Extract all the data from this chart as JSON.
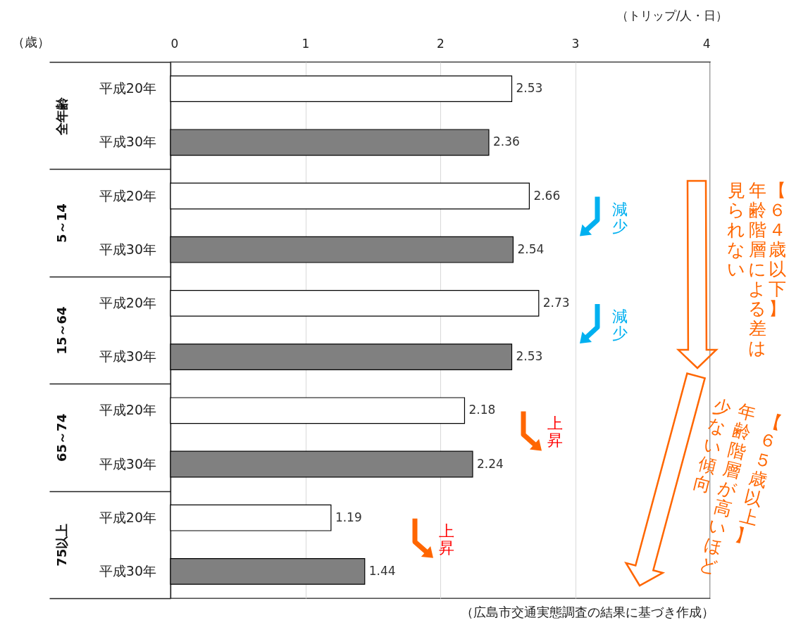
{
  "chart_data": {
    "type": "bar",
    "orientation": "horizontal",
    "xlabel": "（トリップ/人・日）",
    "ylabel": "（歳）",
    "categories": [
      "全年齢",
      "5～14",
      "15～64",
      "65～74",
      "75以上"
    ],
    "series": [
      {
        "name": "平成20年",
        "color": "#ffffff",
        "values": [
          2.53,
          2.66,
          2.73,
          2.18,
          1.19
        ]
      },
      {
        "name": "平成30年",
        "color": "#808080",
        "values": [
          2.36,
          2.54,
          2.53,
          2.24,
          1.44
        ]
      }
    ],
    "xlim": [
      0,
      4
    ],
    "xticks": [
      0,
      1,
      2,
      3,
      4
    ],
    "grid": "x",
    "data_labels": true,
    "annotations": [
      "減少",
      "減少",
      "上昇",
      "上昇",
      "【６４歳以下】",
      "年齢階層による差は",
      "見られない",
      "【６５歳以上】",
      "年齢階層が高いほど",
      "少ない傾向",
      "（広島市交通実態調査の結果に基づき作成）"
    ]
  }
}
